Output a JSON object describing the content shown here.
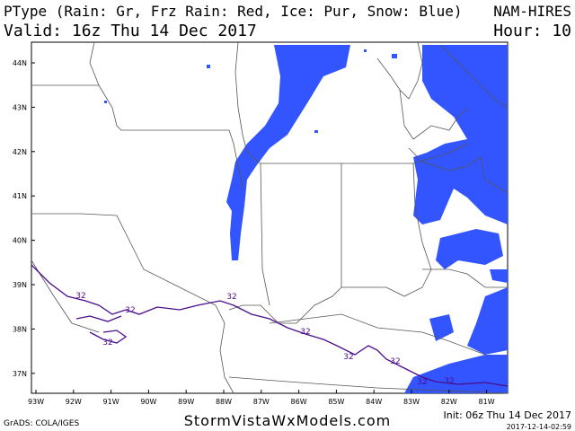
{
  "header": {
    "title": "PType (Rain: Gr, Frz Rain: Red, Ice: Pur, Snow: Blue)",
    "model": "NAM-HIRES",
    "valid": "Valid: 16z Thu 14 Dec 2017",
    "hour": "Hour: 10"
  },
  "map": {
    "lat_labels": [
      "44N",
      "43N",
      "42N",
      "41N",
      "40N",
      "39N",
      "38N",
      "37N"
    ],
    "lon_labels": [
      "93W",
      "92W",
      "91W",
      "90W",
      "89W",
      "88W",
      "87W",
      "86W",
      "85W",
      "84W",
      "83W",
      "82W",
      "81W"
    ],
    "contour_labels": [
      "32",
      "32",
      "32",
      "32",
      "32",
      "32",
      "32",
      "32",
      "32"
    ]
  },
  "footer": {
    "grads": "GrADS: COLA/IGES",
    "site": "StormVistaWxModels.com",
    "init": "Init: 06z Thu 14 Dec 2017",
    "timestamp": "2017-12-14-02:59"
  }
}
